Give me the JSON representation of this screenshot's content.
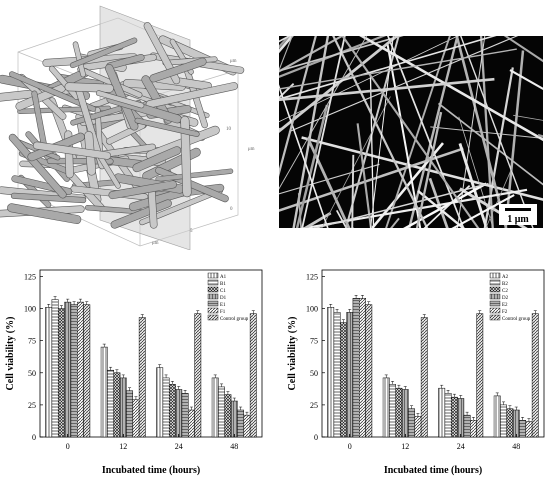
{
  "top_left_figure": {
    "axis_label_short": "μm",
    "axis_ticks": [
      "0",
      "5",
      "10"
    ]
  },
  "top_right_figure": {
    "scale_bar_label": "1 μm"
  },
  "chart_data": [
    {
      "type": "bar",
      "xlabel": "Incubated time (hours)",
      "ylabel": "Cell viability (%)",
      "ylim": [
        0,
        130
      ],
      "yticks": [
        0,
        25,
        50,
        75,
        100,
        125
      ],
      "categories": [
        "0",
        "12",
        "24",
        "48"
      ],
      "legend_position": "top-right",
      "series": [
        {
          "name": "A1",
          "values": [
            101,
            70,
            54,
            46
          ]
        },
        {
          "name": "B1",
          "values": [
            107,
            52,
            46,
            39
          ]
        },
        {
          "name": "C1",
          "values": [
            100,
            50,
            41,
            33
          ]
        },
        {
          "name": "D1",
          "values": [
            105,
            46,
            37,
            28
          ]
        },
        {
          "name": "E1",
          "values": [
            103,
            36,
            34,
            21
          ]
        },
        {
          "name": "F1",
          "values": [
            105,
            29,
            21,
            17
          ]
        },
        {
          "name": "Control group",
          "values": [
            103,
            93,
            96,
            96
          ]
        }
      ]
    },
    {
      "type": "bar",
      "xlabel": "Incubated time (hours)",
      "ylabel": "Cell viability (%)",
      "ylim": [
        0,
        130
      ],
      "yticks": [
        0,
        25,
        50,
        75,
        100,
        125
      ],
      "categories": [
        "0",
        "12",
        "24",
        "48"
      ],
      "legend_position": "top-right",
      "series": [
        {
          "name": "A2",
          "values": [
            101,
            46,
            38,
            32
          ]
        },
        {
          "name": "B2",
          "values": [
            97,
            41,
            34,
            25
          ]
        },
        {
          "name": "C2",
          "values": [
            89,
            38,
            31,
            22
          ]
        },
        {
          "name": "D2",
          "values": [
            97,
            37,
            30,
            21
          ]
        },
        {
          "name": "E2",
          "values": [
            108,
            22,
            17,
            13
          ]
        },
        {
          "name": "F2",
          "values": [
            108,
            16,
            13,
            12
          ]
        },
        {
          "name": "Control group",
          "values": [
            103,
            93,
            96,
            96
          ]
        }
      ]
    }
  ]
}
